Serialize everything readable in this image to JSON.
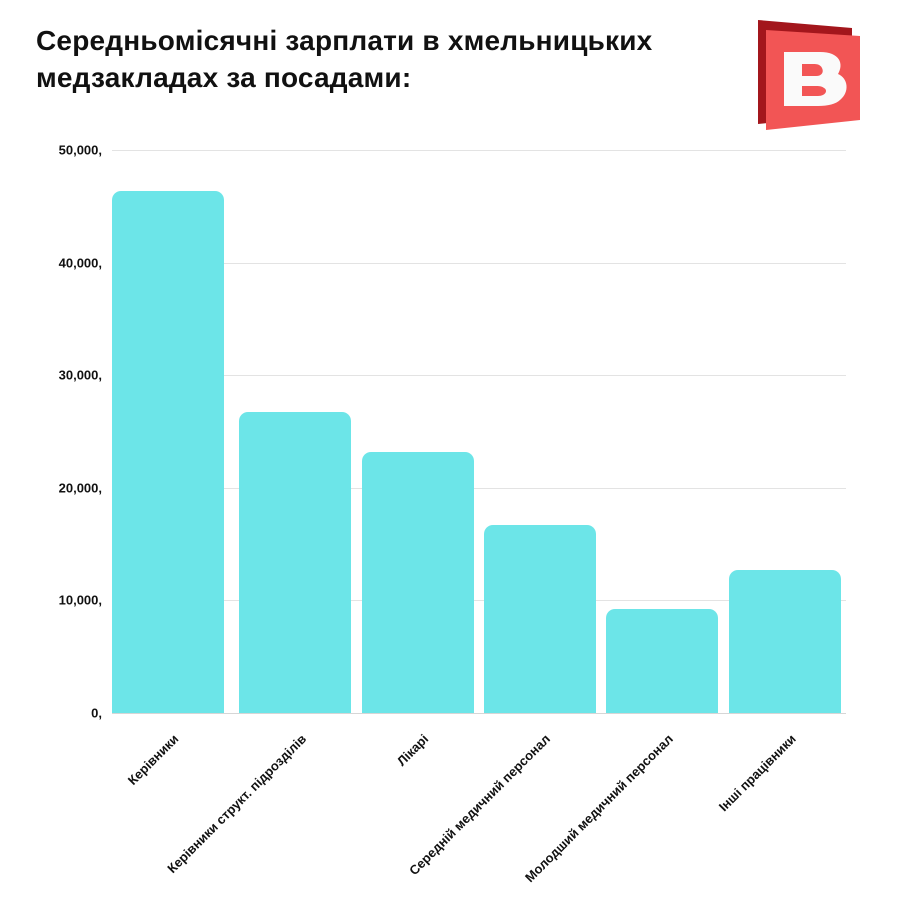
{
  "header": {
    "title_line1": "Середньомісячні зарплати в хмельницьких",
    "title_line2": "медзакладах за посадами:",
    "logo_letter": "B",
    "logo_icon": "brand-logo-icon"
  },
  "colors": {
    "bar": "#6ce5e8",
    "grid": "#e3e3e3",
    "logo_front": "#f25555",
    "logo_back": "#a3161c",
    "text": "#111111"
  },
  "axis": {
    "y_ticks": [
      "0,",
      "10,000,",
      "20,000,",
      "30,000,",
      "40,000,",
      "50,000,"
    ]
  },
  "chart_data": {
    "type": "bar",
    "title": "Середньомісячні зарплати в хмельницьких медзакладах за посадами:",
    "xlabel": "",
    "ylabel": "",
    "categories": [
      "Керівники",
      "Керівники структ. підрозділів",
      "Лікарі",
      "Середній медичний персонал",
      "Молодший медичний персонал",
      "Інші працівники"
    ],
    "values": [
      46400,
      26700,
      23200,
      16700,
      9200,
      12700
    ],
    "ylim": [
      0,
      50000
    ],
    "y_tick_values": [
      0,
      10000,
      20000,
      30000,
      40000,
      50000
    ],
    "grid": true,
    "legend": null
  }
}
